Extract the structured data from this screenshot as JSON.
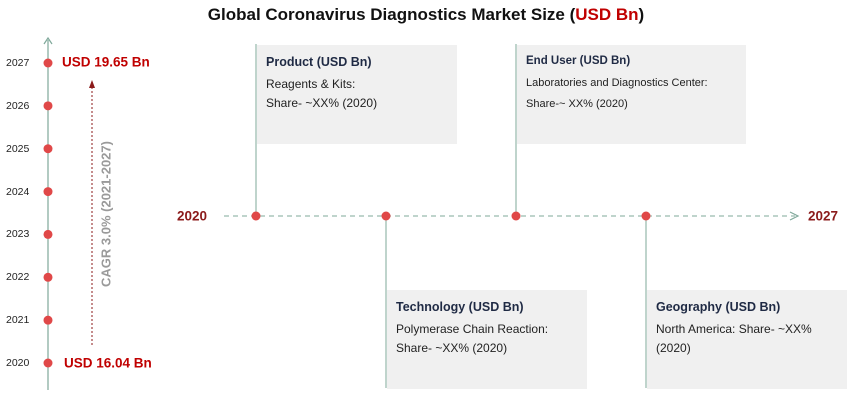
{
  "title": {
    "prefix": "Global Coronavirus Diagnostics Market Size (",
    "accent": "USD Bn",
    "suffix": ")"
  },
  "chart_data": {
    "type": "timeline",
    "years": [
      "2027",
      "2026",
      "2025",
      "2024",
      "2023",
      "2022",
      "2021",
      "2020"
    ],
    "start_value_label": "USD 16.04 Bn",
    "end_value_label": "USD 19.65 Bn",
    "start_value": 16.04,
    "end_value": 19.65,
    "cagr_label": "CAGR 3.0% (2021-2027)",
    "axis_start_label": "2020",
    "axis_end_label": "2027",
    "segments": [
      {
        "title": "Product (USD Bn)",
        "line1": "Reagents & Kits:",
        "line2": "Share- ~XX% (2020)",
        "position": "top"
      },
      {
        "title": "Technology (USD Bn)",
        "line1": "Polymerase Chain Reaction:",
        "line2": "Share- ~XX% (2020)",
        "position": "bottom"
      },
      {
        "title": "End User (USD Bn)",
        "line1": "Laboratories and Diagnostics Center:",
        "line2": "Share-~ XX% (2020)",
        "position": "top"
      },
      {
        "title": "Geography (USD Bn)",
        "line1": "North America: Share- ~XX%",
        "line2": "(2020)",
        "position": "bottom"
      }
    ]
  },
  "colors": {
    "dot": "#e04848",
    "line": "#7fa89a",
    "accent": "#c00000"
  }
}
